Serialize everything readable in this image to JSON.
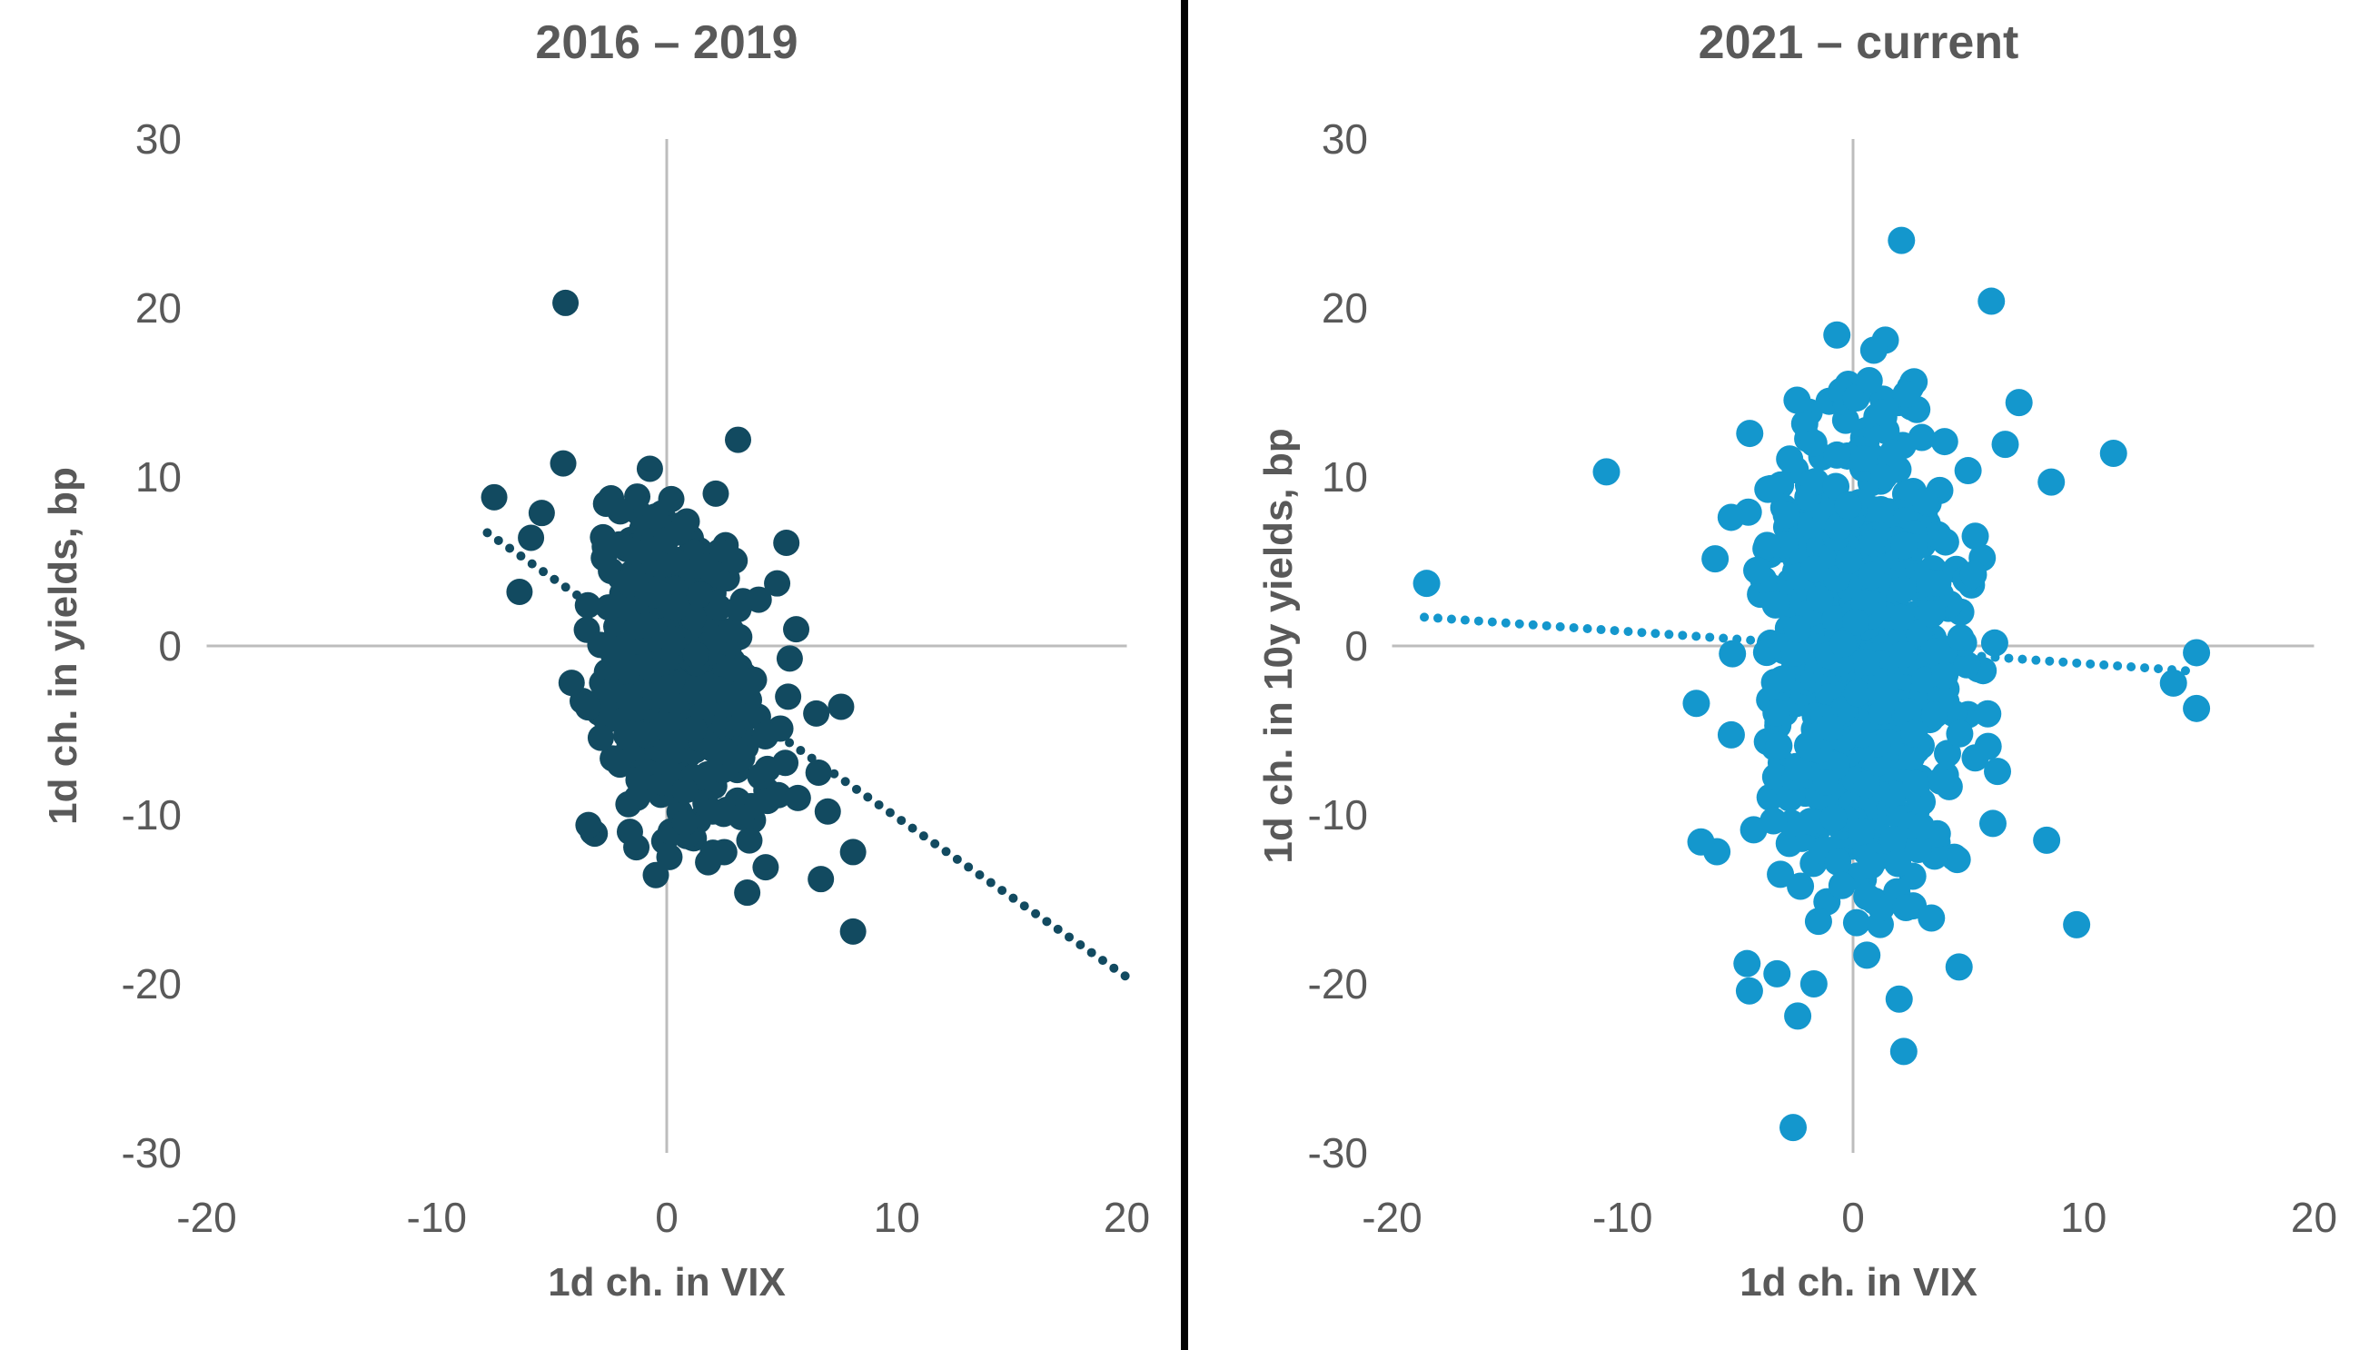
{
  "page": {
    "background": "#ffffff",
    "divider_color": "#000000",
    "axis_line_color": "#bdbdbd",
    "text_color": "#595959"
  },
  "chart_data": [
    {
      "type": "scatter",
      "title": "2016 – 2019",
      "xlabel": "1d ch. in VIX",
      "ylabel": "1d ch. in yields, bp",
      "xlim": [
        -20,
        20
      ],
      "ylim": [
        -30,
        30
      ],
      "xticks": [
        -20,
        -10,
        0,
        10,
        20
      ],
      "yticks": [
        30,
        20,
        10,
        0,
        -10,
        -20,
        -30
      ],
      "grid": false,
      "legend": null,
      "point_color": "#124a60",
      "marker_radius": 14.5,
      "trendline": {
        "style": "dotted",
        "x1": -7.8,
        "y1": 6.7,
        "x2": 20,
        "y2": -19.6,
        "slope": -0.95,
        "intercept": -0.7
      },
      "clusters": [
        {
          "count": 440,
          "cx": 0.2,
          "cy": -1.6,
          "sx": 1.7,
          "sy": 4.4,
          "corr": -0.3,
          "clip_x": [
            -5.0,
            6.0
          ],
          "clip_y": [
            -12.5,
            12.5
          ],
          "seed": 42
        },
        {
          "count": 70,
          "cx": 0.5,
          "cy": -2.0,
          "sx": 3.0,
          "sy": 6.0,
          "corr": -0.45,
          "clip_x": [
            -7.2,
            7.8
          ],
          "clip_y": [
            -14.5,
            12.0
          ],
          "seed": 137
        }
      ],
      "outlier_points": [
        [
          -4.4,
          20.3
        ],
        [
          -7.5,
          8.8
        ],
        [
          -4.5,
          10.8
        ],
        [
          -5.9,
          6.4
        ],
        [
          -6.4,
          3.2
        ],
        [
          3.1,
          12.2
        ],
        [
          5.2,
          6.1
        ],
        [
          4.8,
          3.7
        ],
        [
          6.5,
          -4.0
        ],
        [
          6.6,
          -7.5
        ],
        [
          5.7,
          -9.0
        ],
        [
          7.0,
          -9.8
        ],
        [
          8.1,
          -12.2
        ],
        [
          6.7,
          -13.8
        ],
        [
          4.3,
          -13.1
        ],
        [
          3.5,
          -14.6
        ],
        [
          1.8,
          -12.8
        ],
        [
          8.1,
          -16.9
        ],
        [
          -3.4,
          -10.6
        ],
        [
          -1.6,
          -11.0
        ]
      ]
    },
    {
      "type": "scatter",
      "title": "2021 – current",
      "xlabel": "1d ch. in VIX",
      "ylabel": "1d ch. in 10y yields, bp",
      "xlim": [
        -20,
        20
      ],
      "ylim": [
        -30,
        30
      ],
      "xticks": [
        -20,
        -10,
        0,
        10,
        20
      ],
      "yticks": [
        30,
        20,
        10,
        0,
        -10,
        -20,
        -30
      ],
      "grid": false,
      "legend": null,
      "point_color": "#1497cd",
      "marker_radius": 15,
      "trendline": {
        "style": "dotted",
        "x1": -18.6,
        "y1": 1.7,
        "x2": 14.8,
        "y2": -1.5,
        "slope": -0.09,
        "intercept": 0.0
      },
      "clusters": [
        {
          "count": 620,
          "cx": 0.4,
          "cy": -0.6,
          "sx": 1.9,
          "sy": 7.0,
          "corr": -0.02,
          "clip_x": [
            -5.5,
            7.0
          ],
          "clip_y": [
            -16.5,
            16.0
          ],
          "seed": 7
        },
        {
          "count": 90,
          "cx": 0.5,
          "cy": 0.0,
          "sx": 3.4,
          "sy": 9.0,
          "corr": -0.05,
          "clip_x": [
            -8.5,
            10.0
          ],
          "clip_y": [
            -20.5,
            18.5
          ],
          "seed": 99
        }
      ],
      "outlier_points": [
        [
          -18.5,
          3.7
        ],
        [
          -10.7,
          10.3
        ],
        [
          11.3,
          11.4
        ],
        [
          14.9,
          -0.4
        ],
        [
          13.9,
          -2.2
        ],
        [
          14.9,
          -3.7
        ],
        [
          2.1,
          24.0
        ],
        [
          6.0,
          20.4
        ],
        [
          -0.7,
          18.4
        ],
        [
          1.4,
          18.1
        ],
        [
          0.9,
          17.5
        ],
        [
          0.7,
          15.7
        ],
        [
          2.3,
          14.9
        ],
        [
          7.2,
          14.4
        ],
        [
          8.6,
          9.7
        ],
        [
          -6.6,
          -11.6
        ],
        [
          8.4,
          -11.5
        ],
        [
          9.7,
          -16.5
        ],
        [
          2.2,
          -24.0
        ],
        [
          -2.6,
          -28.5
        ],
        [
          -3.3,
          -19.4
        ],
        [
          -1.5,
          -16.3
        ],
        [
          -1.7,
          -20.0
        ],
        [
          -2.4,
          -21.9
        ],
        [
          0.6,
          -18.3
        ],
        [
          2.0,
          -20.9
        ],
        [
          3.4,
          -16.1
        ],
        [
          4.6,
          -19.0
        ],
        [
          -4.6,
          -18.8
        ],
        [
          -6.8,
          -3.4
        ]
      ]
    }
  ]
}
